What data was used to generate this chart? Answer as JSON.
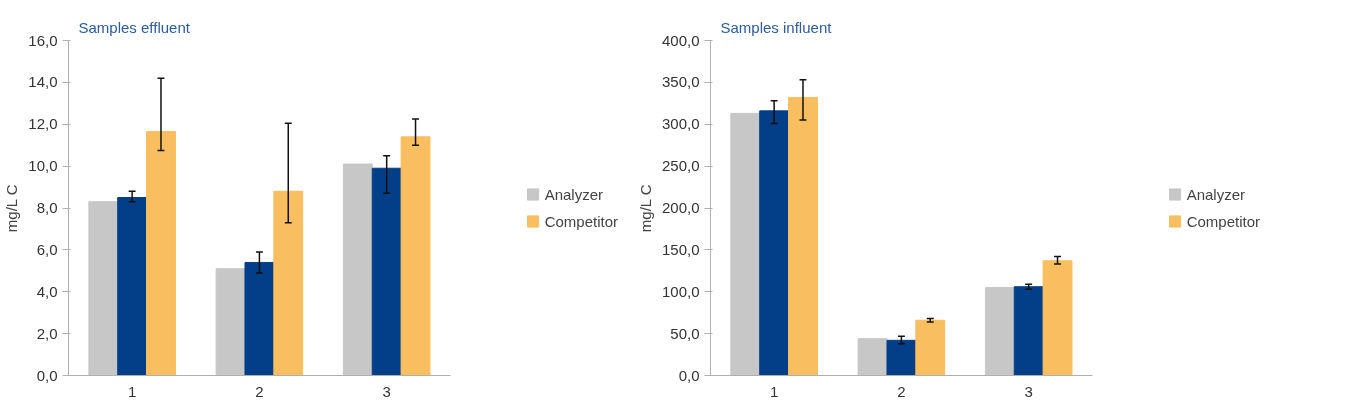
{
  "chart_data": [
    {
      "type": "bar",
      "title": "Samples effluent",
      "ylabel": "mg/L C",
      "categories": [
        "1",
        "2",
        "3"
      ],
      "series": [
        {
          "name": "Analyzer",
          "color": "#c6c7c6",
          "values": [
            8.3,
            5.1,
            10.1
          ]
        },
        {
          "color": "#033f88",
          "values": [
            8.5,
            5.4,
            9.9
          ],
          "errors": [
            [
              8.3,
              8.8
            ],
            [
              4.9,
              5.9
            ],
            [
              8.7,
              10.5
            ]
          ]
        },
        {
          "name": "Competitor",
          "color": "#f9be5f",
          "values": [
            11.65,
            8.8,
            11.4
          ],
          "errors": [
            [
              10.75,
              14.2
            ],
            [
              7.3,
              12.05
            ],
            [
              11.0,
              12.25
            ]
          ]
        }
      ],
      "ylim": [
        0,
        16
      ],
      "yticks": [
        {
          "value": 0,
          "label": "0,0"
        },
        {
          "value": 2,
          "label": "2,0"
        },
        {
          "value": 4,
          "label": "4,0"
        },
        {
          "value": 6,
          "label": "6,0"
        },
        {
          "value": 8,
          "label": "8,0"
        },
        {
          "value": 10,
          "label": "10,0"
        },
        {
          "value": 12,
          "label": "12,0"
        },
        {
          "value": 14,
          "label": "14,0"
        },
        {
          "value": 16,
          "label": "16,0"
        }
      ],
      "legend": "right"
    },
    {
      "type": "bar",
      "title": "Samples influent",
      "ylabel": "mg/L C",
      "categories": [
        "1",
        "2",
        "3"
      ],
      "series": [
        {
          "name": "Analyzer",
          "color": "#c6c7c6",
          "values": [
            313,
            44,
            105
          ]
        },
        {
          "color": "#033f88",
          "values": [
            316,
            42,
            106
          ],
          "errors": [
            [
              301,
              328
            ],
            [
              38,
              47
            ],
            [
              103,
              109
            ]
          ]
        },
        {
          "name": "Competitor",
          "color": "#f9be5f",
          "values": [
            332,
            66,
            137
          ],
          "errors": [
            [
              305,
              353
            ],
            [
              64,
              68
            ],
            [
              133,
              142
            ]
          ]
        }
      ],
      "ylim": [
        0,
        400
      ],
      "yticks": [
        {
          "value": 0,
          "label": "0,0"
        },
        {
          "value": 50,
          "label": "50,0"
        },
        {
          "value": 100,
          "label": "100,0"
        },
        {
          "value": 150,
          "label": "150,0"
        },
        {
          "value": 200,
          "label": "200,0"
        },
        {
          "value": 250,
          "label": "250,0"
        },
        {
          "value": 300,
          "label": "300,0"
        },
        {
          "value": 350,
          "label": "350,0"
        },
        {
          "value": 400,
          "label": "400,0"
        }
      ],
      "legend": "right"
    }
  ]
}
